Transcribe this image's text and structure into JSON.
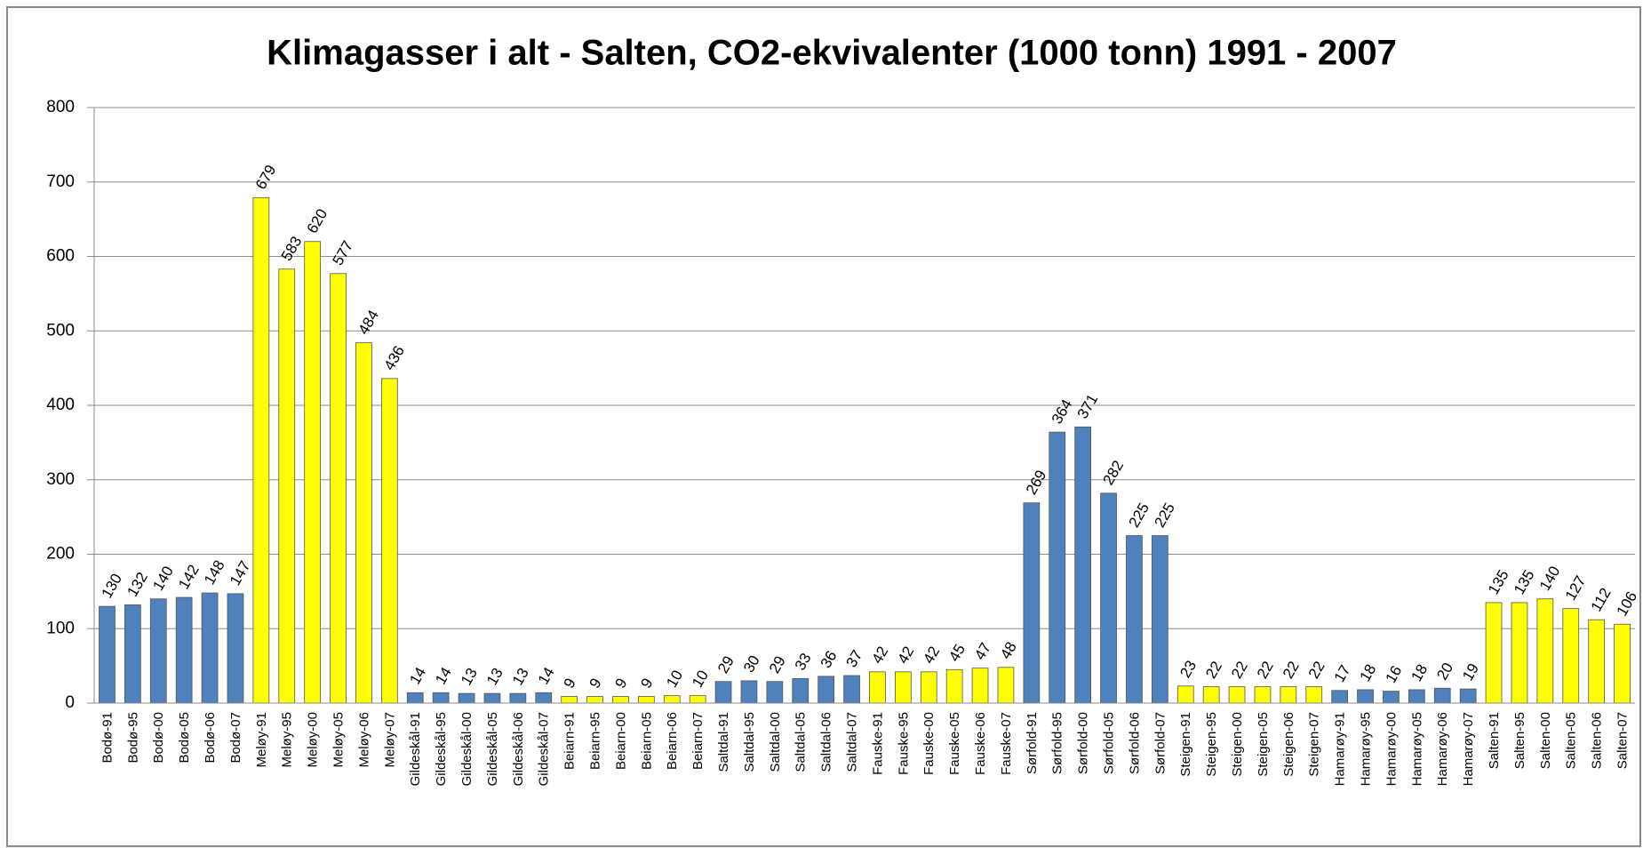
{
  "chart_data": {
    "type": "bar",
    "title": "Klimagasser i alt - Salten, CO2-ekvivalenter  (1000 tonn) 1991 - 2007",
    "categories": [
      "Bodø-91",
      "Bodø-95",
      "Bodø-00",
      "Bodø-05",
      "Bodø-06",
      "Bodø-07",
      "Meløy-91",
      "Meløy-95",
      "Meløy-00",
      "Meløy-05",
      "Meløy-06",
      "Meløy-07",
      "Gildeskål-91",
      "Gildeskål-95",
      "Gildeskål-00",
      "Gildeskål-05",
      "Gildeskål-06",
      "Gildeskål-07",
      "Beiarn-91",
      "Beiarn-95",
      "Beiarn-00",
      "Beiarn-05",
      "Beiarn-06",
      "Beiarn-07",
      "Saltdal-91",
      "Saltdal-95",
      "Saltdal-00",
      "Saltdal-05",
      "Saltdal-06",
      "Saltdal-07",
      "Fauske-91",
      "Fauske-95",
      "Fauske-00",
      "Fauske-05",
      "Fauske-06",
      "Fauske-07",
      "Sørfold-91",
      "Sørfold-95",
      "Sørfold-00",
      "Sørfold-05",
      "Sørfold-06",
      "Sørfold-07",
      "Steigen-91",
      "Steigen-95",
      "Steigen-00",
      "Steigen-05",
      "Steigen-06",
      "Steigen-07",
      "Hamarøy-91",
      "Hamarøy-95",
      "Hamarøy-00",
      "Hamarøy-05",
      "Hamarøy-06",
      "Hamarøy-07",
      "Salten-91",
      "Salten-95",
      "Salten-00",
      "Salten-05",
      "Salten-06",
      "Salten-07"
    ],
    "values": [
      130,
      132,
      140,
      142,
      148,
      147,
      679,
      583,
      620,
      577,
      484,
      436,
      14,
      14,
      13,
      13,
      13,
      14,
      9,
      9,
      9,
      9,
      10,
      10,
      29,
      30,
      29,
      33,
      36,
      37,
      42,
      42,
      42,
      45,
      47,
      48,
      269,
      364,
      371,
      282,
      225,
      225,
      23,
      22,
      22,
      22,
      22,
      22,
      17,
      18,
      16,
      18,
      20,
      19,
      135,
      135,
      140,
      127,
      112,
      106
    ],
    "colors": [
      "#4f81bd",
      "#4f81bd",
      "#4f81bd",
      "#4f81bd",
      "#4f81bd",
      "#4f81bd",
      "#ffff00",
      "#ffff00",
      "#ffff00",
      "#ffff00",
      "#ffff00",
      "#ffff00",
      "#4f81bd",
      "#4f81bd",
      "#4f81bd",
      "#4f81bd",
      "#4f81bd",
      "#4f81bd",
      "#ffff00",
      "#ffff00",
      "#ffff00",
      "#ffff00",
      "#ffff00",
      "#ffff00",
      "#4f81bd",
      "#4f81bd",
      "#4f81bd",
      "#4f81bd",
      "#4f81bd",
      "#4f81bd",
      "#ffff00",
      "#ffff00",
      "#ffff00",
      "#ffff00",
      "#ffff00",
      "#ffff00",
      "#4f81bd",
      "#4f81bd",
      "#4f81bd",
      "#4f81bd",
      "#4f81bd",
      "#4f81bd",
      "#ffff00",
      "#ffff00",
      "#ffff00",
      "#ffff00",
      "#ffff00",
      "#ffff00",
      "#4f81bd",
      "#4f81bd",
      "#4f81bd",
      "#4f81bd",
      "#4f81bd",
      "#4f81bd",
      "#ffff00",
      "#ffff00",
      "#ffff00",
      "#ffff00",
      "#ffff00",
      "#ffff00"
    ],
    "ylim": [
      0,
      800
    ],
    "yticks": [
      0,
      100,
      200,
      300,
      400,
      500,
      600,
      700,
      800
    ],
    "grid": true
  }
}
